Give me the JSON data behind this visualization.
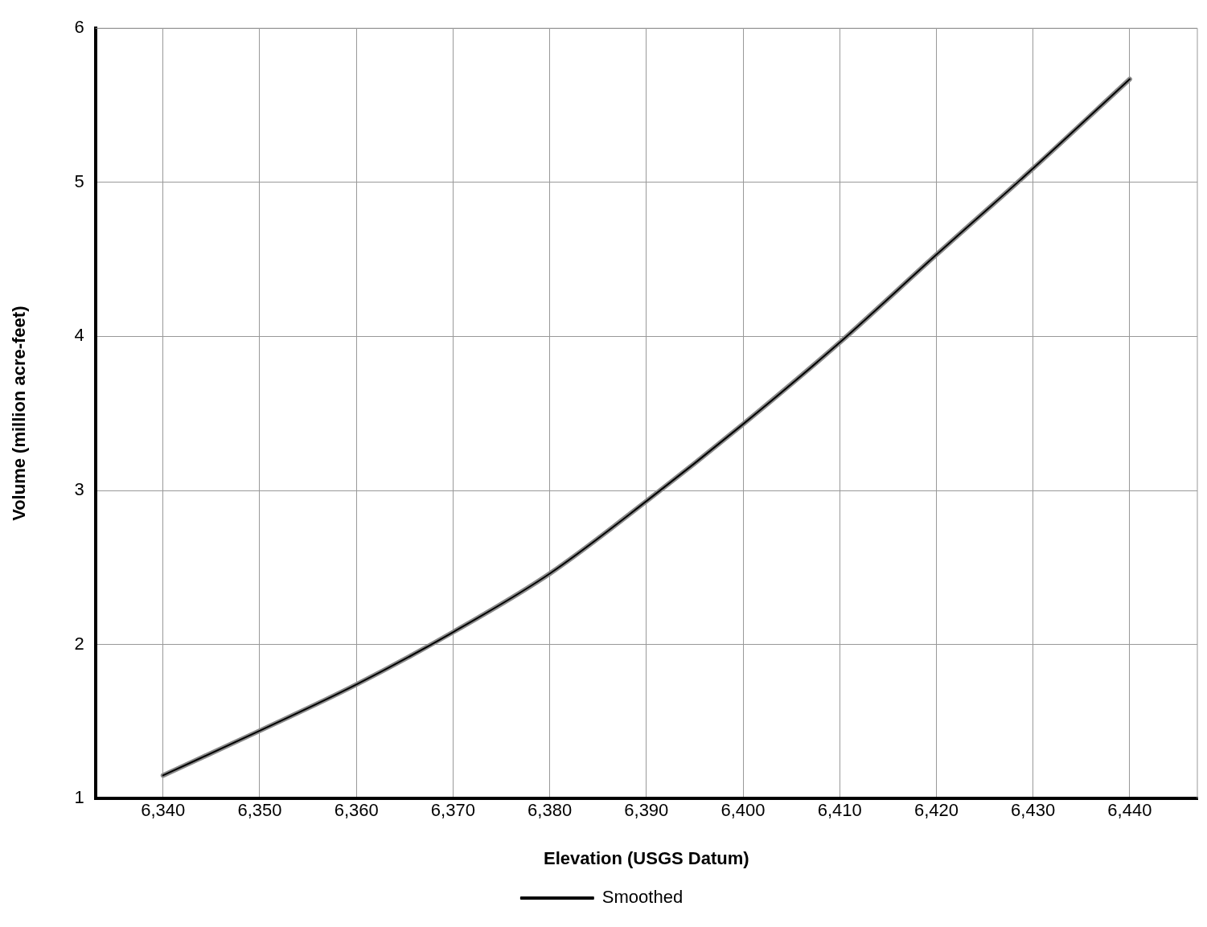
{
  "chart_data": {
    "type": "line",
    "xlabel": "Elevation (USGS Datum)",
    "ylabel": "Volume (million acre-feet)",
    "x": [
      6340,
      6350,
      6360,
      6370,
      6380,
      6390,
      6400,
      6410,
      6420,
      6430,
      6440
    ],
    "series": [
      {
        "color": "#8a8a8a",
        "values": [
          1.15,
          1.44,
          1.74,
          2.08,
          2.46,
          2.93,
          3.43,
          3.96,
          4.53,
          5.09,
          5.67
        ]
      },
      {
        "name": "Smoothed",
        "color": "#000000",
        "values": [
          1.15,
          1.44,
          1.74,
          2.08,
          2.46,
          2.93,
          3.43,
          3.96,
          4.53,
          5.09,
          5.67
        ]
      }
    ],
    "xlim": [
      6333,
      6447
    ],
    "xticks": [
      {
        "value": 6340,
        "label": "6,340"
      },
      {
        "value": 6350,
        "label": "6,350"
      },
      {
        "value": 6360,
        "label": "6,360"
      },
      {
        "value": 6370,
        "label": "6,370"
      },
      {
        "value": 6380,
        "label": "6,380"
      },
      {
        "value": 6390,
        "label": "6,390"
      },
      {
        "value": 6400,
        "label": "6,400"
      },
      {
        "value": 6410,
        "label": "6,410"
      },
      {
        "value": 6420,
        "label": "6,420"
      },
      {
        "value": 6430,
        "label": "6,430"
      },
      {
        "value": 6440,
        "label": "6,440"
      }
    ],
    "ylim": [
      1,
      6
    ],
    "yticks": [
      1,
      2,
      3,
      4,
      5,
      6
    ],
    "grid": true,
    "legend": "bottom",
    "marker": "none",
    "line_style": "solid"
  }
}
